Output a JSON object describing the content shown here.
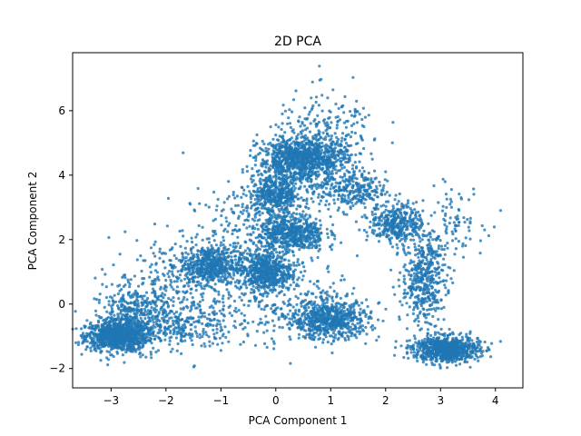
{
  "chart_data": {
    "type": "scatter",
    "title": "2D PCA",
    "xlabel": "PCA Component 1",
    "ylabel": "PCA Component 2",
    "xlim": [
      -3.7,
      4.5
    ],
    "ylim": [
      -2.6,
      7.8
    ],
    "xticks": [
      -3,
      -2,
      -1,
      0,
      1,
      2,
      3,
      4
    ],
    "yticks": [
      -2,
      0,
      2,
      4,
      6
    ],
    "grid": false,
    "legend": "none",
    "color": "#1f77b4",
    "series": [
      {
        "points_summary": "dense clusters of points",
        "clusters": [
          {
            "cx": -2.9,
            "cy": -1.0,
            "sx": 0.28,
            "sy": 0.22,
            "weight": 10
          },
          {
            "cx": -2.6,
            "cy": -0.4,
            "sx": 0.35,
            "sy": 0.45,
            "weight": 4
          },
          {
            "cx": -1.2,
            "cy": 1.2,
            "sx": 0.28,
            "sy": 0.3,
            "weight": 6
          },
          {
            "cx": -0.2,
            "cy": 1.0,
            "sx": 0.25,
            "sy": 0.3,
            "weight": 6
          },
          {
            "cx": 0.3,
            "cy": 2.2,
            "sx": 0.3,
            "sy": 0.3,
            "weight": 6
          },
          {
            "cx": 0.0,
            "cy": 3.4,
            "sx": 0.25,
            "sy": 0.3,
            "weight": 5
          },
          {
            "cx": 0.5,
            "cy": 4.5,
            "sx": 0.4,
            "sy": 0.35,
            "weight": 12
          },
          {
            "cx": 1.0,
            "cy": -0.5,
            "sx": 0.35,
            "sy": 0.3,
            "weight": 7
          },
          {
            "cx": 3.1,
            "cy": -1.4,
            "sx": 0.3,
            "sy": 0.2,
            "weight": 9
          },
          {
            "cx": 2.7,
            "cy": 0.8,
            "sx": 0.2,
            "sy": 0.7,
            "weight": 5
          },
          {
            "cx": 2.2,
            "cy": 2.5,
            "sx": 0.25,
            "sy": 0.3,
            "weight": 4
          },
          {
            "cx": 1.4,
            "cy": 3.5,
            "sx": 0.3,
            "sy": 0.3,
            "weight": 3
          },
          {
            "cx": -1.9,
            "cy": 0.5,
            "sx": 0.6,
            "sy": 0.8,
            "weight": 3
          },
          {
            "cx": -0.5,
            "cy": 2.2,
            "sx": 0.6,
            "sy": 0.7,
            "weight": 3
          },
          {
            "cx": 0.2,
            "cy": 0.0,
            "sx": 0.7,
            "sy": 0.6,
            "weight": 3
          },
          {
            "cx": -1.8,
            "cy": -0.7,
            "sx": 0.5,
            "sy": 0.4,
            "weight": 3
          },
          {
            "cx": 1.0,
            "cy": 5.4,
            "sx": 0.5,
            "sy": 0.6,
            "weight": 2
          },
          {
            "cx": 3.2,
            "cy": 2.6,
            "sx": 0.3,
            "sy": 0.5,
            "weight": 1
          }
        ]
      }
    ]
  }
}
